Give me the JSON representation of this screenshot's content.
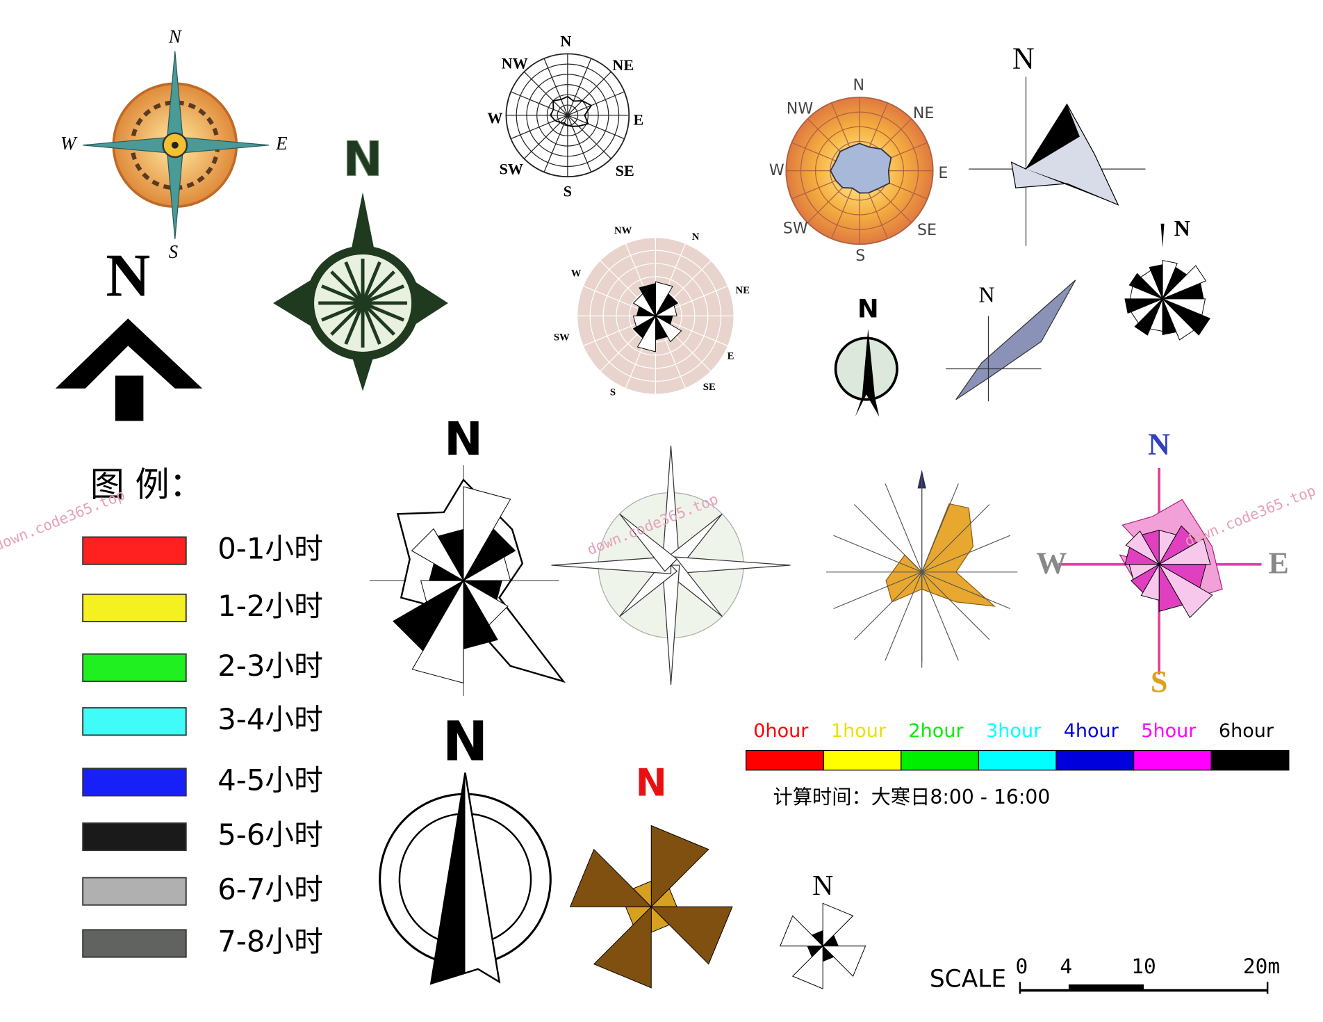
{
  "symbols": [
    {
      "labels": [
        "N",
        "W",
        "E",
        "S"
      ]
    },
    {
      "labels": [
        "N"
      ]
    },
    {
      "labels": [
        "N"
      ]
    },
    {
      "labels": [
        "N",
        "NE",
        "E",
        "SE",
        "S",
        "SW",
        "W",
        "NW"
      ]
    },
    {
      "labels": [
        "NW",
        "N",
        "NE",
        "W",
        "SW",
        "E",
        "SE",
        "S"
      ]
    },
    {
      "labels": [
        "N",
        "NE",
        "E",
        "SE",
        "S",
        "SW",
        "W",
        "NW"
      ]
    },
    {
      "labels": [
        "N"
      ]
    },
    {
      "labels": [
        "N"
      ]
    },
    {
      "labels": [
        "N"
      ]
    },
    {
      "labels": [
        "N"
      ]
    },
    {
      "labels": [
        "N"
      ]
    },
    {
      "labels": [
        "N",
        "W",
        "E",
        "S"
      ]
    },
    {
      "labels": [
        "N"
      ]
    },
    {
      "labels": [
        "N"
      ]
    },
    {
      "labels": [
        "N"
      ]
    }
  ],
  "legend": {
    "title": "图 例：",
    "items": [
      {
        "label": "0-1小时",
        "color": "#ff2020"
      },
      {
        "label": "1-2小时",
        "color": "#f5f020"
      },
      {
        "label": "2-3小时",
        "color": "#20f020"
      },
      {
        "label": "3-4小时",
        "color": "#40fcf8"
      },
      {
        "label": "4-5小时",
        "color": "#1820f8"
      },
      {
        "label": "5-6小时",
        "color": "#1a1a1a"
      },
      {
        "label": "6-7小时",
        "color": "#b0b0b0"
      },
      {
        "label": "7-8小时",
        "color": "#606360"
      }
    ]
  },
  "hour_bar": {
    "items": [
      {
        "label": "0hour",
        "color": "#ff0000"
      },
      {
        "label": "1hour",
        "color": "#ffff00"
      },
      {
        "label": "2hour",
        "color": "#00ee00"
      },
      {
        "label": "3hour",
        "color": "#00ffff"
      },
      {
        "label": "4hour",
        "color": "#0000dd"
      },
      {
        "label": "5hour",
        "color": "#ff00ff"
      },
      {
        "label": "6hour",
        "color": "#000000"
      }
    ],
    "note": "计算时间：大寒日8:00 - 16:00"
  },
  "scale": {
    "title": "SCALE",
    "ticks": [
      "0",
      "4",
      "10",
      "20m"
    ]
  },
  "watermark": "down.code365.top"
}
